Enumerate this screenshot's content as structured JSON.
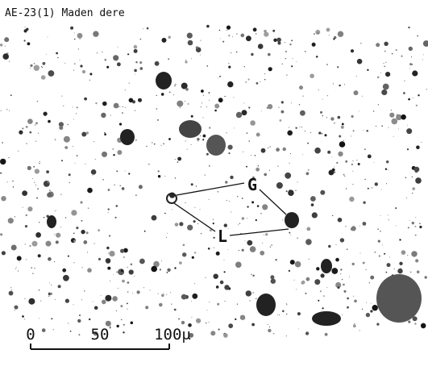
{
  "title": "AE-23(1)  Maden dere",
  "labels": {
    "g": "G",
    "l": "L"
  },
  "scale_bar": {
    "labels": [
      "0",
      "50",
      "100μ"
    ]
  }
}
